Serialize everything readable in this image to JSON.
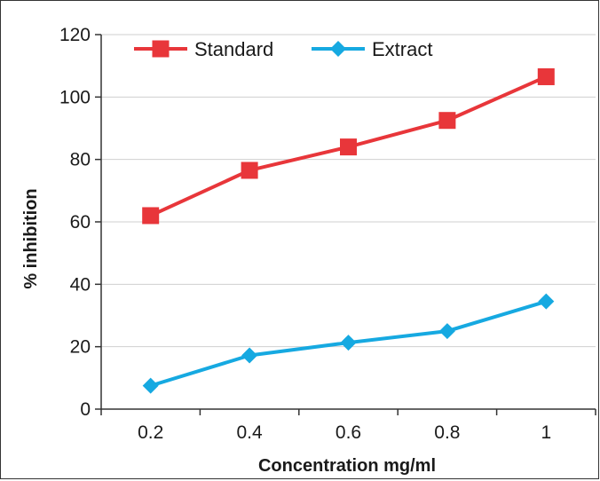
{
  "chart_data": {
    "type": "line",
    "title": "",
    "xlabel": "Concentration mg/ml",
    "ylabel": "% inhibition",
    "categories": [
      "0.2",
      "0.4",
      "0.6",
      "0.8",
      "1"
    ],
    "ylim": [
      0,
      120
    ],
    "yticks": [
      "0",
      "20",
      "40",
      "60",
      "80",
      "100",
      "120"
    ],
    "grid": true,
    "legend_position": "top",
    "series": [
      {
        "name": "Standard",
        "marker": "square",
        "color": "#e8363a",
        "values": [
          62,
          76.5,
          84,
          92.5,
          106.5
        ]
      },
      {
        "name": "Extract",
        "marker": "diamond",
        "color": "#16a9e1",
        "values": [
          7.5,
          17.2,
          21.3,
          25,
          34.5
        ]
      }
    ]
  }
}
